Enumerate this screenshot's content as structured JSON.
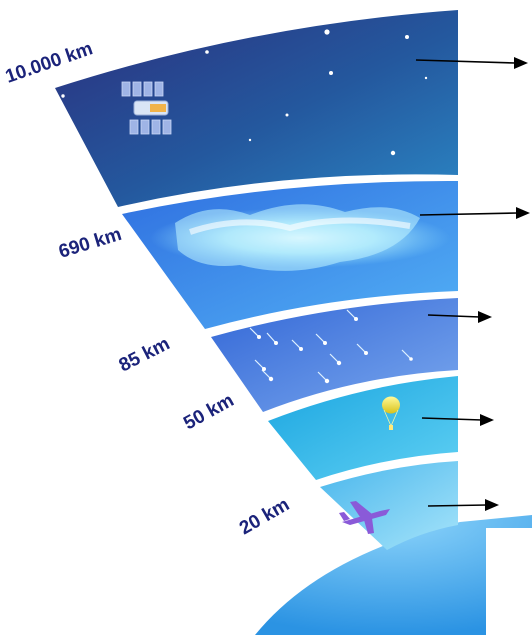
{
  "colors": {
    "exosphere_top": "#2a3587",
    "exosphere_bottom": "#2a7fc0",
    "thermosphere": "#3f8fea",
    "mesosphere": "#4b86e6",
    "stratosphere": "#2ab4e8",
    "troposphere": "#5fc5ef",
    "earth": "#4fb4f0",
    "label": "#1b237a",
    "arrow": "#000000"
  },
  "layers": [
    {
      "altitude": "10.000 km",
      "icon": "satellite-icon"
    },
    {
      "altitude": "690 km",
      "icon": "aurora-icon"
    },
    {
      "altitude": "85 km",
      "icon": "meteor-icon"
    },
    {
      "altitude": "50 km",
      "icon": "weather-balloon-icon"
    },
    {
      "altitude": "20 km",
      "icon": "airplane-icon"
    }
  ]
}
